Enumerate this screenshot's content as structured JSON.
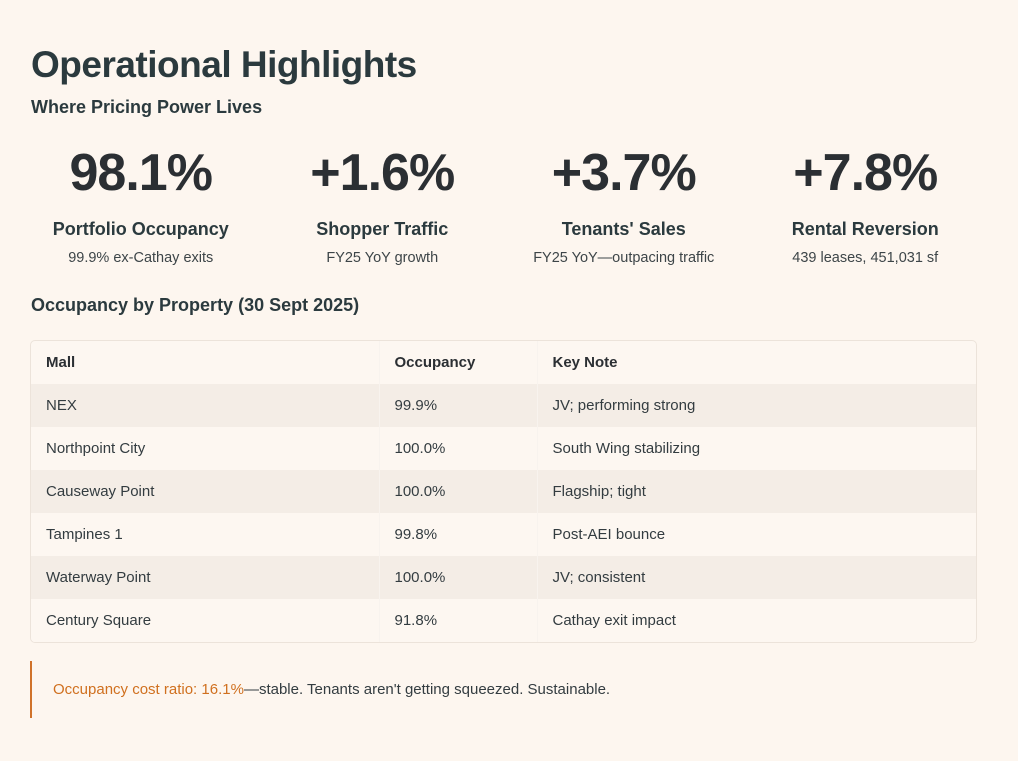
{
  "header": {
    "title": "Operational Highlights",
    "subtitle": "Where Pricing Power Lives"
  },
  "stats": [
    {
      "value": "98.1%",
      "label": "Portfolio Occupancy",
      "note": "99.9% ex-Cathay exits"
    },
    {
      "value": "+1.6%",
      "label": "Shopper Traffic",
      "note": "FY25 YoY growth"
    },
    {
      "value": "+3.7%",
      "label": "Tenants' Sales",
      "note": "FY25 YoY—outpacing traffic"
    },
    {
      "value": "+7.8%",
      "label": "Rental Reversion",
      "note": "439 leases, 451,031 sf"
    }
  ],
  "section": {
    "title": "Occupancy by Property (30 Sept 2025)"
  },
  "table": {
    "headers": [
      "Mall",
      "Occupancy",
      "Key Note"
    ],
    "rows": [
      [
        "NEX",
        "99.9%",
        "JV; performing strong"
      ],
      [
        "Northpoint City",
        "100.0%",
        "South Wing stabilizing"
      ],
      [
        "Causeway Point",
        "100.0%",
        "Flagship; tight"
      ],
      [
        "Tampines 1",
        "99.8%",
        "Post-AEI bounce"
      ],
      [
        "Waterway Point",
        "100.0%",
        "JV; consistent"
      ],
      [
        "Century Square",
        "91.8%",
        "Cathay exit impact"
      ]
    ]
  },
  "callout": {
    "highlight": "Occupancy cost ratio: 16.1%",
    "text": "—stable. Tenants aren't getting squeezed. Sustainable."
  },
  "colors": {
    "background": "#fdf6ef",
    "accent": "#d0701f"
  }
}
